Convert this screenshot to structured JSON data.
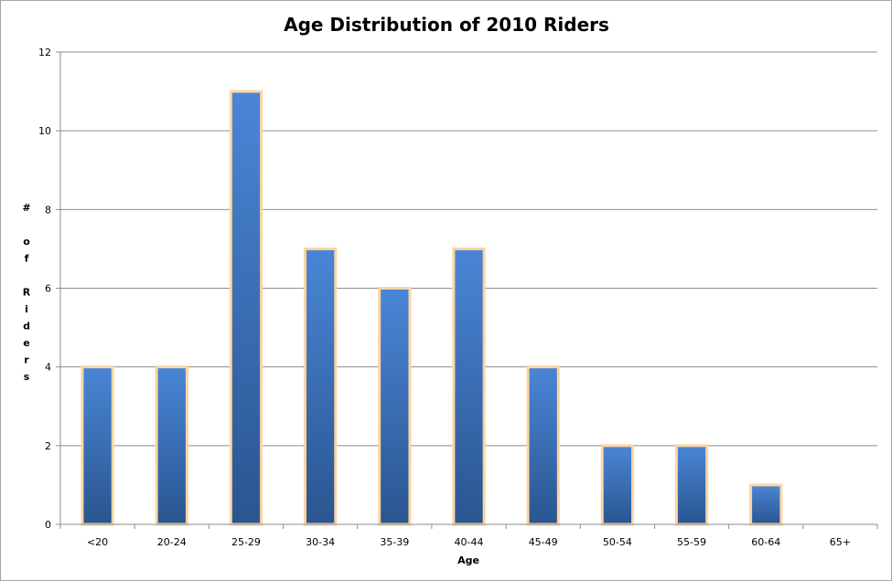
{
  "chart_data": {
    "type": "bar",
    "title": "Age Distribution of 2010 Riders",
    "xlabel": "Age",
    "ylabel": "# of Riders",
    "ylabel_lines": [
      "#",
      "",
      "o",
      "f",
      "",
      "R",
      "i",
      "d",
      "e",
      "r",
      "s"
    ],
    "categories": [
      "<20",
      "20-24",
      "25-29",
      "30-34",
      "35-39",
      "40-44",
      "45-49",
      "50-54",
      "55-59",
      "60-64",
      "65+"
    ],
    "values": [
      4,
      4,
      11,
      7,
      6,
      7,
      4,
      2,
      2,
      1,
      0
    ],
    "ylim": [
      0,
      12
    ],
    "yticks": [
      0,
      2,
      4,
      6,
      8,
      10,
      12
    ],
    "grid": true,
    "legend": "none",
    "colors": {
      "bar_top": "#4a86d6",
      "bar_bottom": "#2a5590",
      "bar_outline": "#fcd5a4",
      "grid": "#8c8c8c",
      "axis": "#8c8c8c"
    }
  }
}
